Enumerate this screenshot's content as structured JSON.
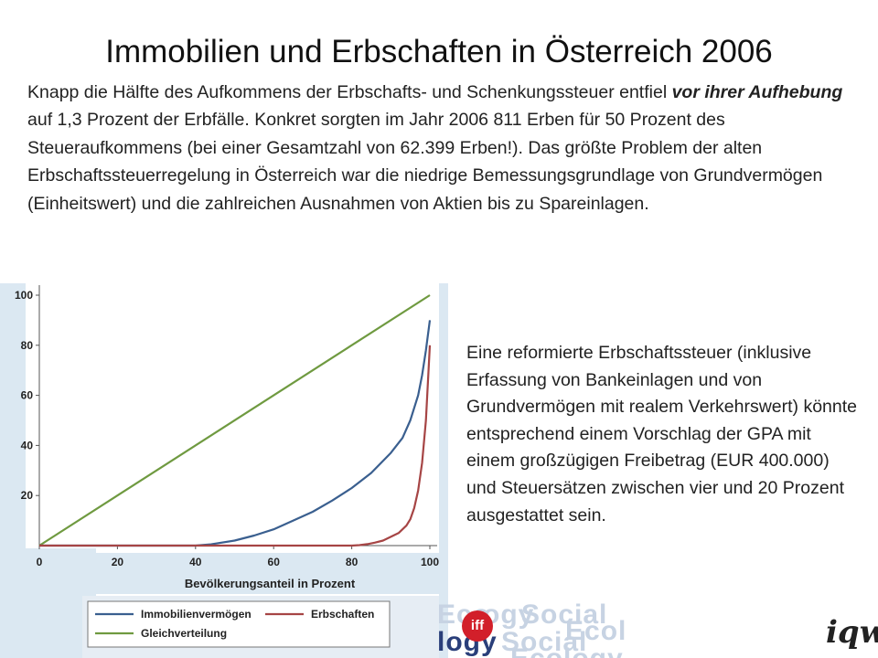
{
  "title": "Immobilien und Erbschaften in Österreich 2006",
  "intro": {
    "part1": "Knapp die Hälfte des Aufkommens der Erbschafts- und Schenkungssteuer entfiel ",
    "emphasis": "vor ihrer Aufhebung",
    "part2": " auf 1,3 Prozent der Erbfälle. Konkret sorgten im Jahr 2006 811 Erben für 50 Prozent des Steueraufkommens (bei einer Gesamtzahl von 62.399 Erben!). Das größte Problem der alten Erbschaftssteuerregelung in Österreich war die niedrige Bemessungsgrundlage von Grundvermögen (Einheitswert) und die zahlreichen Ausnahmen von Aktien bis zu Spareinlagen."
  },
  "side_text": "Eine reformierte Erbschaftssteuer (inklusive Erfassung von Bankeinlagen und von Grundvermögen mit realem Verkehrswert) könnte entsprechend einem Vorschlag der GPA mit einem großzügigen Freibetrag (EUR 400.000) und Steuersätzen zwischen vier und 20 Prozent ausgestattet sein.",
  "logos": {
    "iff": "iff",
    "iqw": "iqw",
    "watermark": [
      "Eco",
      "logy",
      "Social",
      "Ecol",
      "ogy",
      "Social",
      "Ecology"
    ]
  },
  "colors": {
    "immobilien": "#3a5f8f",
    "erbschaften": "#a64545",
    "gleichverteilung": "#6f9a40",
    "panel_bg": "#dbe8f2"
  },
  "chart_data": {
    "type": "line",
    "title": "",
    "xlabel": "Bevölkerungsanteil in Prozent",
    "ylabel": "",
    "xlim": [
      0,
      100
    ],
    "ylim": [
      0,
      100
    ],
    "x_ticks": [
      0,
      20,
      40,
      60,
      80,
      100
    ],
    "y_ticks": [
      20,
      40,
      60,
      80,
      100
    ],
    "grid": false,
    "legend_position": "bottom",
    "series": [
      {
        "name": "Immobilienvermögen",
        "x": [
          0,
          40,
          44,
          50,
          55,
          60,
          65,
          70,
          75,
          80,
          85,
          90,
          93,
          95,
          97,
          98,
          99,
          100
        ],
        "y": [
          0,
          0,
          0.5,
          2,
          4,
          6.5,
          10,
          13.5,
          18,
          23,
          29,
          37,
          43,
          50,
          60,
          68,
          78,
          90
        ]
      },
      {
        "name": "Erbschaften",
        "x": [
          0,
          80,
          82,
          84,
          86,
          88,
          90,
          92,
          94,
          95,
          96,
          97,
          98,
          99,
          100
        ],
        "y": [
          0,
          0,
          0.2,
          0.6,
          1.2,
          2,
          3.5,
          5,
          8,
          10.5,
          15,
          22,
          33,
          50,
          80
        ]
      },
      {
        "name": "Gleichverteilung",
        "x": [
          0,
          100
        ],
        "y": [
          0,
          100
        ]
      }
    ]
  }
}
